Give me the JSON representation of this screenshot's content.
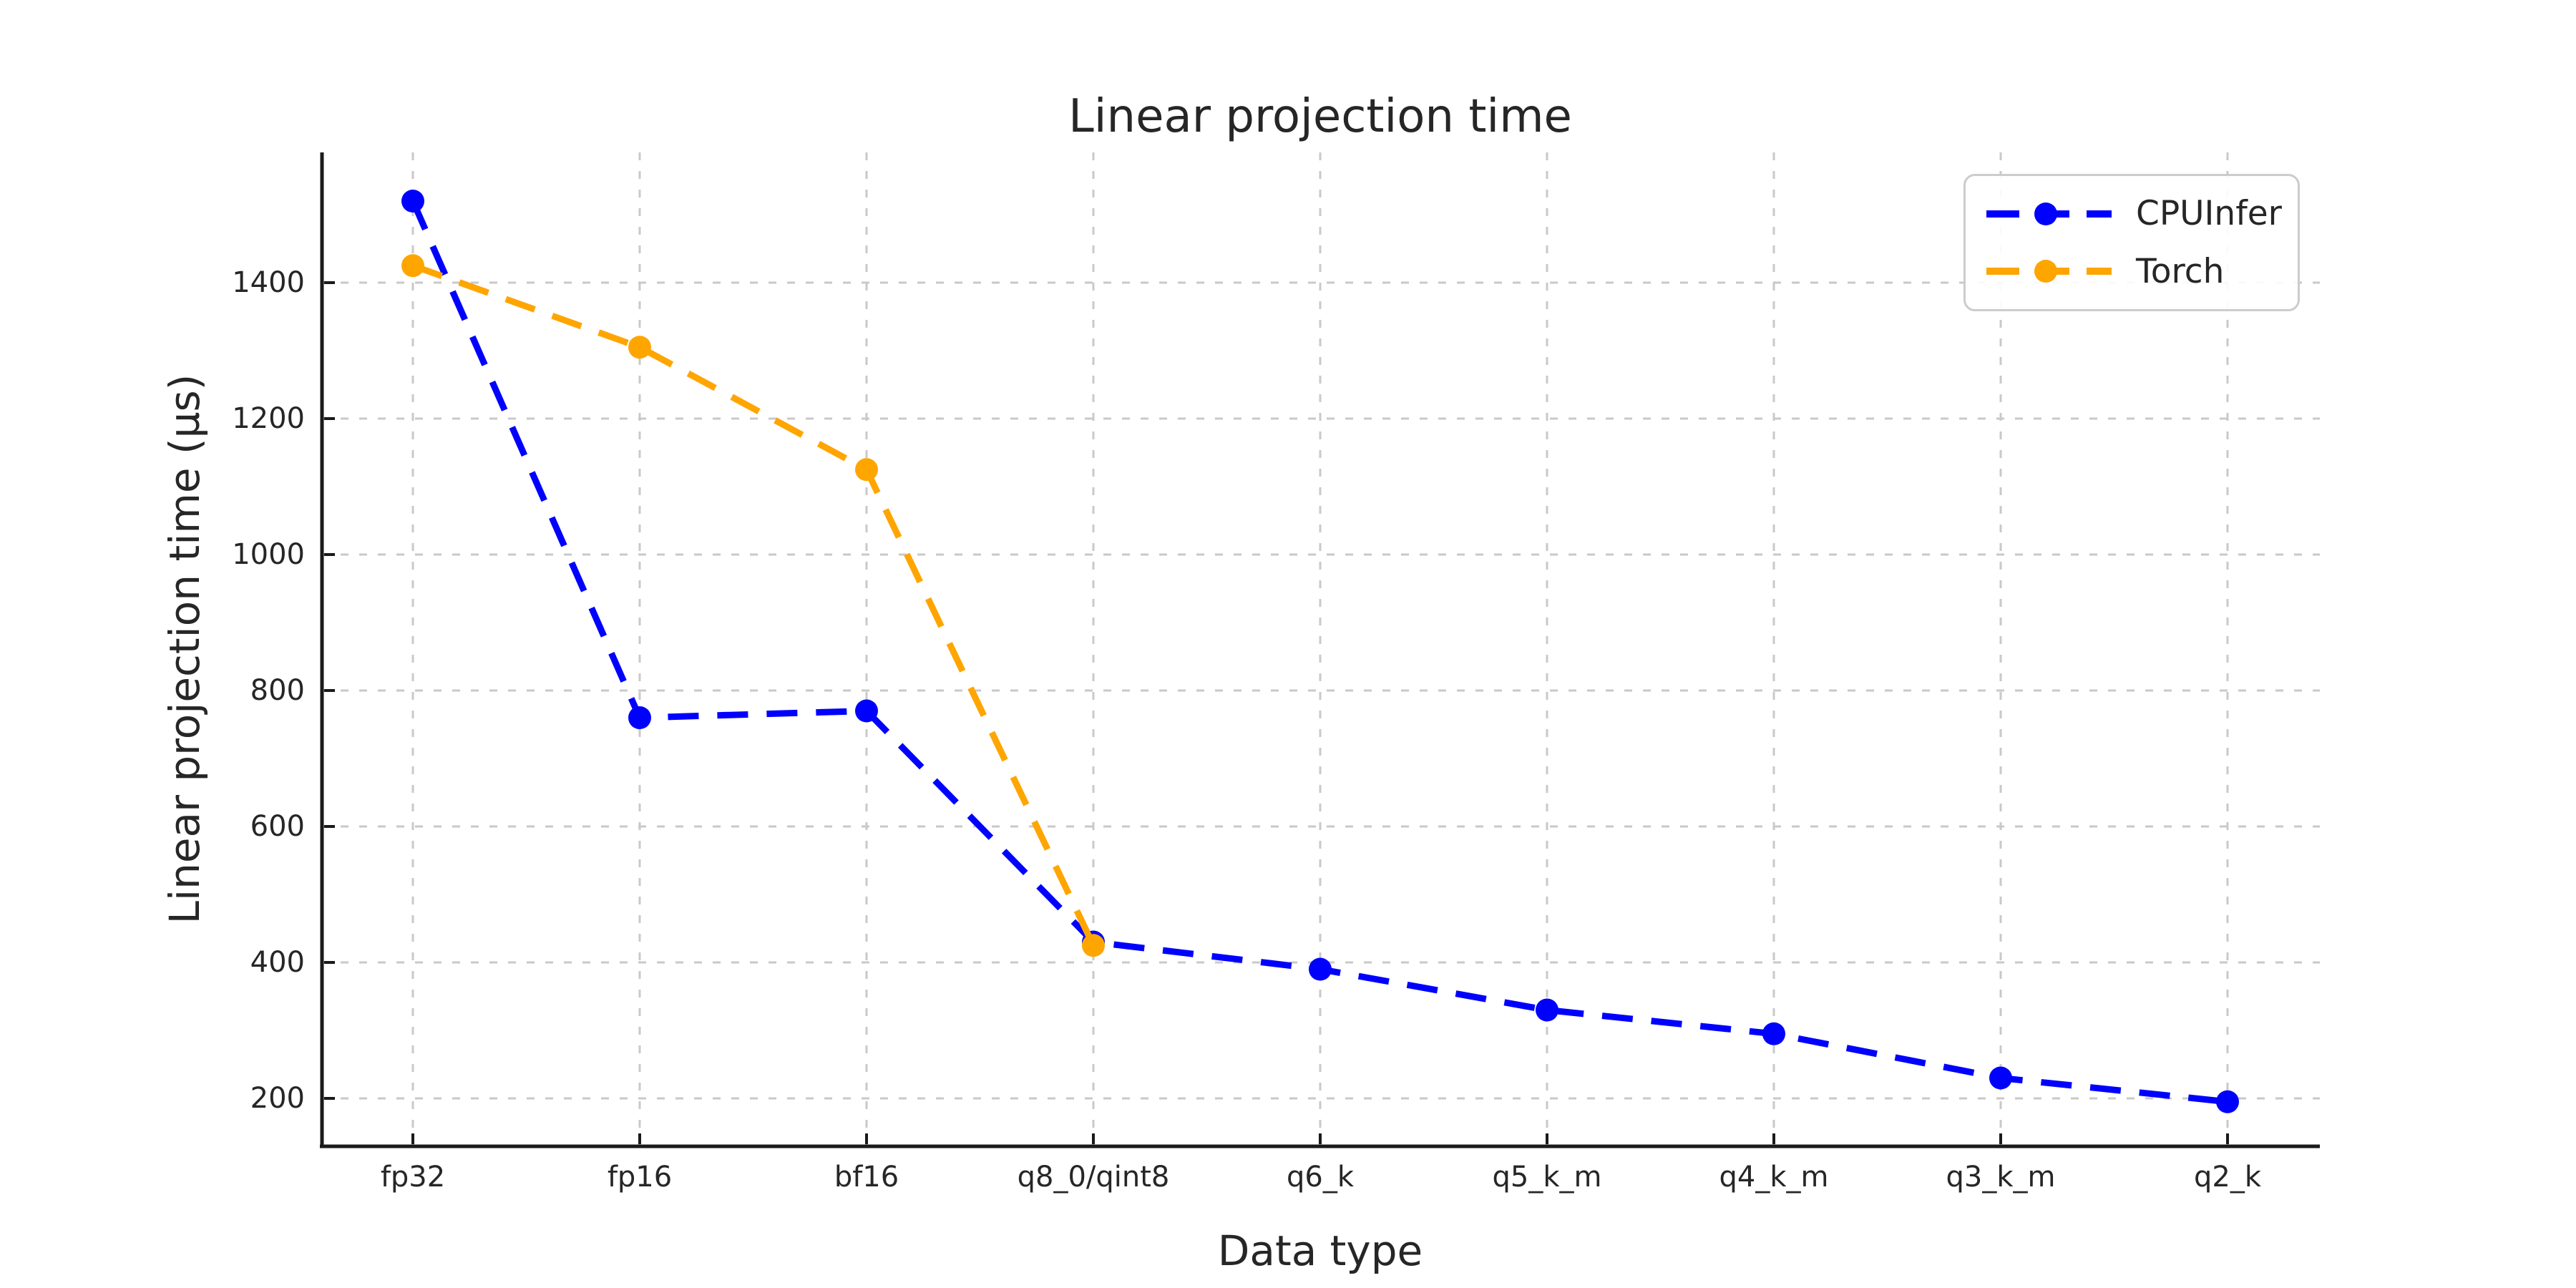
{
  "chart_data": {
    "type": "line",
    "title": "Linear projection time",
    "xlabel": "Data type",
    "ylabel": "Linear projection time (µs)",
    "categories": [
      "fp32",
      "fp16",
      "bf16",
      "q8_0/qint8",
      "q6_k",
      "q5_k_m",
      "q4_k_m",
      "q3_k_m",
      "q2_k"
    ],
    "series": [
      {
        "name": "CPUInfer",
        "color": "#0000ff",
        "values": [
          1520,
          760,
          770,
          430,
          390,
          330,
          295,
          230,
          195
        ]
      },
      {
        "name": "Torch",
        "color": "#ffa500",
        "values": [
          1425,
          1305,
          1125,
          425,
          null,
          null,
          null,
          null,
          null
        ]
      }
    ],
    "yticks": [
      200,
      400,
      600,
      800,
      1000,
      1200,
      1400
    ],
    "ylim": [
      130,
      1590
    ],
    "grid": true,
    "grid_style": "dashed",
    "line_style": "dashed",
    "marker": "circle",
    "legend_position": "upper right",
    "text_color": "#262626",
    "grid_color": "#c9c9c9",
    "spine_color": "#1a1a1a",
    "background_color": "#ffffff"
  }
}
